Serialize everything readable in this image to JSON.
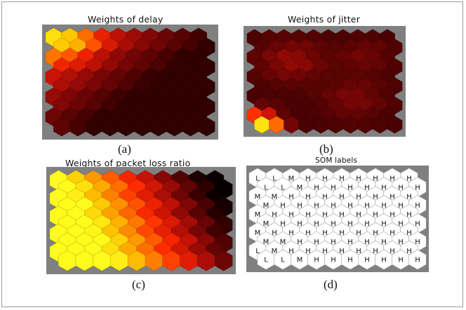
{
  "colors": {
    "background": "#808080",
    "hot_palette": [
      "#000000",
      "#3a0000",
      "#7a0606",
      "#c61206",
      "#ff2a00",
      "#ff7a00",
      "#ffc200",
      "#ffff1e"
    ],
    "label_hex_fill": "#ffffff",
    "label_hex_stroke": "#9a9a9a"
  },
  "panels": [
    {
      "id": "delay",
      "title": "Weights of delay",
      "caption": "(a)",
      "kind": "heatmap"
    },
    {
      "id": "jitter",
      "title": "Weights of jitter",
      "caption": "(b)",
      "kind": "heatmap"
    },
    {
      "id": "plr",
      "title": "Weights of packet loss ratio",
      "caption": "(c)",
      "kind": "heatmap"
    },
    {
      "id": "labels",
      "title": "SOM labels",
      "caption": "(d)",
      "kind": "labels",
      "grid": [
        [
          "L",
          "L",
          "M",
          "H",
          "H",
          "H",
          "H",
          "H",
          "H",
          "H"
        ],
        [
          "L",
          "L",
          "M",
          "H",
          "H",
          "H",
          "H",
          "H",
          "H",
          "H"
        ],
        [
          "M",
          "M",
          "H",
          "H",
          "H",
          "H",
          "H",
          "H",
          "H",
          "H"
        ],
        [
          "M",
          "H",
          "H",
          "H",
          "H",
          "H",
          "H",
          "H",
          "H",
          "H"
        ],
        [
          "M",
          "H",
          "H",
          "H",
          "H",
          "H",
          "H",
          "H",
          "H",
          "H"
        ],
        [
          "M",
          "H",
          "H",
          "H",
          "H",
          "H",
          "H",
          "H",
          "H",
          "H"
        ],
        [
          "M",
          "H",
          "H",
          "H",
          "H",
          "H",
          "H",
          "H",
          "H",
          "H"
        ],
        [
          "M",
          "M",
          "H",
          "H",
          "H",
          "H",
          "H",
          "H",
          "H",
          "H"
        ],
        [
          "L",
          "M",
          "H",
          "H",
          "H",
          "H",
          "H",
          "H",
          "H",
          "H"
        ],
        [
          "L",
          "L",
          "M",
          "H",
          "H",
          "H",
          "H",
          "H",
          "H",
          "H"
        ]
      ]
    }
  ]
}
